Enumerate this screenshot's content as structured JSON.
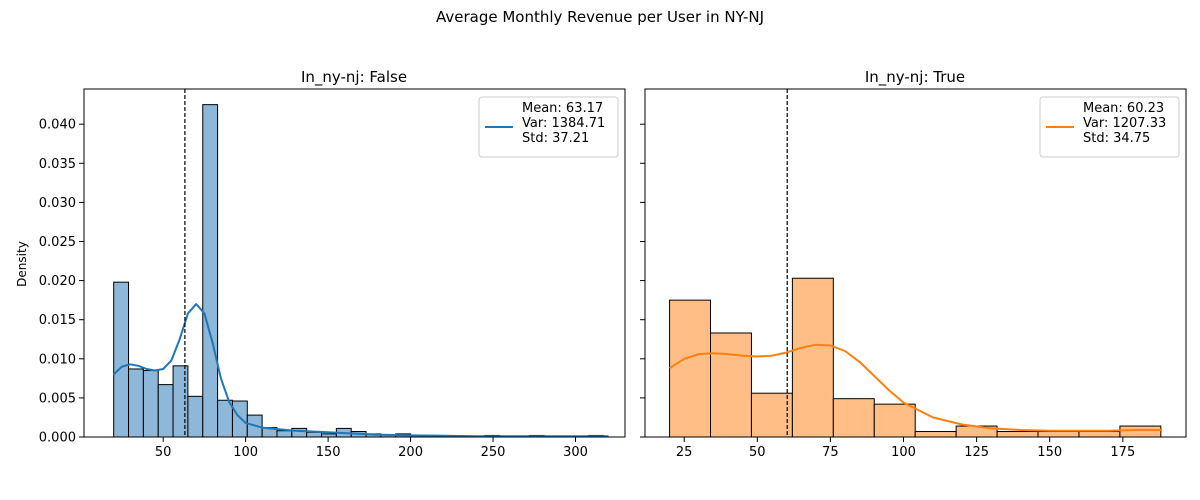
{
  "figure": {
    "suptitle": "Average Monthly Revenue per User in NY-NJ"
  },
  "chart_data": [
    {
      "type": "bar",
      "subtype": "histogram-with-kde",
      "title": "In_ny-nj: False",
      "xlabel": "",
      "ylabel": "Density",
      "xlim": [
        2,
        330
      ],
      "ylim": [
        0,
        0.0445
      ],
      "xticks": [
        50,
        100,
        150,
        200,
        250,
        300
      ],
      "yticks": [
        0.0,
        0.005,
        0.01,
        0.015,
        0.02,
        0.025,
        0.03,
        0.035,
        0.04
      ],
      "ytick_labels": [
        "0.000",
        "0.005",
        "0.010",
        "0.015",
        "0.020",
        "0.025",
        "0.030",
        "0.035",
        "0.040"
      ],
      "bin_start": 20,
      "bin_width": 9,
      "values": [
        0.0198,
        0.0087,
        0.0085,
        0.0067,
        0.0091,
        0.0052,
        0.0425,
        0.0047,
        0.0046,
        0.0028,
        0.0012,
        0.0008,
        0.0011,
        0.0006,
        0.0004,
        0.0011,
        0.0007,
        0.0004,
        0.0003,
        0.0004,
        0.0002,
        0.0002,
        0.0001,
        0.0001,
        0.0001,
        0.0002,
        0.0001,
        0.0001,
        0.0002,
        0.0001,
        0.0001,
        0.0001,
        0.0002
      ],
      "kde": {
        "x": [
          20,
          25,
          30,
          35,
          40,
          45,
          50,
          55,
          60,
          65,
          70,
          75,
          80,
          85,
          90,
          95,
          100,
          110,
          120,
          130,
          140,
          150,
          160,
          170,
          180,
          200,
          220,
          240,
          260,
          280,
          300,
          320
        ],
        "y": [
          0.008,
          0.009,
          0.0093,
          0.0091,
          0.0087,
          0.0085,
          0.0087,
          0.0098,
          0.0125,
          0.0158,
          0.017,
          0.0158,
          0.012,
          0.0075,
          0.0045,
          0.0028,
          0.0018,
          0.0012,
          0.001,
          0.0008,
          0.0007,
          0.0006,
          0.0005,
          0.0004,
          0.0003,
          0.0002,
          0.00015,
          0.0001,
          0.0001,
          0.0001,
          0.0001,
          0.0001
        ]
      },
      "mean_line_x": 63.17,
      "legend": {
        "placement": "upper right",
        "lines": [
          "Mean: 63.17",
          "Var: 1384.71",
          "Std: 37.21"
        ]
      },
      "colors": {
        "fill": "#8db8da",
        "edge": "#000000",
        "kde": "#1f77b4"
      }
    },
    {
      "type": "bar",
      "subtype": "histogram-with-kde",
      "title": "In_ny-nj: True",
      "xlabel": "",
      "ylabel": "",
      "xlim": [
        11.6,
        196.6
      ],
      "ylim": [
        0,
        0.0445
      ],
      "xticks": [
        25,
        50,
        75,
        100,
        125,
        150,
        175
      ],
      "yticks": [
        0.0,
        0.005,
        0.01,
        0.015,
        0.02,
        0.025,
        0.03,
        0.035,
        0.04
      ],
      "ytick_labels": [
        "",
        "",
        "",
        "",
        "",
        "",
        "",
        "",
        ""
      ],
      "bin_start": 20,
      "bin_width": 14.0,
      "values": [
        0.0175,
        0.0133,
        0.0056,
        0.0203,
        0.0049,
        0.0042,
        0.0007,
        0.0014,
        0.0007,
        0.0007,
        0.0007,
        0.0014
      ],
      "kde": {
        "x": [
          20,
          25,
          30,
          35,
          40,
          45,
          50,
          55,
          60,
          65,
          70,
          75,
          80,
          85,
          90,
          95,
          100,
          110,
          120,
          130,
          140,
          150,
          160,
          170,
          180,
          188
        ],
        "y": [
          0.0088,
          0.01,
          0.0106,
          0.0107,
          0.0106,
          0.0104,
          0.0103,
          0.0104,
          0.0108,
          0.0114,
          0.0118,
          0.0117,
          0.011,
          0.0096,
          0.0078,
          0.006,
          0.0044,
          0.0025,
          0.0016,
          0.0011,
          0.0009,
          0.0008,
          0.0008,
          0.0008,
          0.0009,
          0.0009
        ]
      },
      "mean_line_x": 60.23,
      "legend": {
        "placement": "upper right",
        "lines": [
          "Mean: 60.23",
          "Var: 1207.33",
          "Std: 34.75"
        ]
      },
      "colors": {
        "fill": "#ffbe86",
        "edge": "#000000",
        "kde": "#ff7f0e"
      }
    }
  ]
}
